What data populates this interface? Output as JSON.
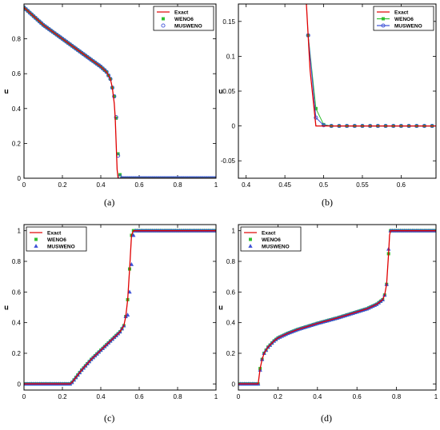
{
  "colors": {
    "exact": "#e00000",
    "weno6": "#2fbf2f",
    "musweno": "#3b4fd6",
    "axis": "#000000"
  },
  "chart_data": [
    {
      "id": "a",
      "caption": "(a)",
      "type": "line",
      "xlim": [
        0,
        1
      ],
      "ylim": [
        0,
        1
      ],
      "xticks": [
        0,
        0.2,
        0.4,
        0.6,
        0.8,
        1
      ],
      "xtick_labels": [
        "0",
        "0.2",
        "0.4",
        "0.6",
        "0.8",
        "1"
      ],
      "yticks": [
        0,
        0.2,
        0.4,
        0.6,
        0.8
      ],
      "ytick_labels": [
        "0",
        "0.2",
        "0.4",
        "0.6",
        "0.8"
      ],
      "xlabel": "",
      "ylabel": "u",
      "legend": {
        "position": "top-right",
        "entries": [
          "Exact",
          "WENO6",
          "MUSWENO"
        ]
      },
      "series": [
        {
          "name": "Exact",
          "style": "line",
          "x": [
            0,
            0.05,
            0.1,
            0.15,
            0.2,
            0.25,
            0.3,
            0.35,
            0.4,
            0.43,
            0.45,
            0.46,
            0.47,
            0.475,
            0.48,
            0.485,
            0.49,
            1
          ],
          "y": [
            0.98,
            0.93,
            0.88,
            0.84,
            0.8,
            0.76,
            0.72,
            0.68,
            0.64,
            0.61,
            0.57,
            0.52,
            0.43,
            0.35,
            0.2,
            0.05,
            0,
            0
          ]
        },
        {
          "name": "WENO6",
          "style": "square",
          "x_start": 0,
          "x_end": 1,
          "step": 0.01,
          "overrides": [
            [
              0.47,
              0.47
            ],
            [
              0.48,
              0.345
            ],
            [
              0.49,
              0.14
            ],
            [
              0.5,
              0.02
            ]
          ]
        },
        {
          "name": "MUSWENO",
          "style": "circle",
          "x_start": 0,
          "x_end": 1,
          "step": 0.01,
          "overrides": [
            [
              0.47,
              0.47
            ],
            [
              0.48,
              0.35
            ],
            [
              0.49,
              0.13
            ],
            [
              0.5,
              0.01
            ]
          ]
        }
      ]
    },
    {
      "id": "b",
      "caption": "(b)",
      "type": "line",
      "xlim": [
        0.39,
        0.645
      ],
      "ylim": [
        -0.075,
        0.175
      ],
      "xticks": [
        0.4,
        0.45,
        0.5,
        0.55,
        0.6
      ],
      "xtick_labels": [
        "0.4",
        "0.45",
        "0.5",
        "0.55",
        "0.6"
      ],
      "yticks": [
        -0.05,
        0,
        0.05,
        0.1,
        0.15
      ],
      "ytick_labels": [
        "-0.05",
        "0",
        "0.05",
        "0.1",
        "0.15"
      ],
      "xlabel": "",
      "ylabel": "u",
      "legend": {
        "position": "top-right",
        "entries": [
          "Exact",
          "WENO6",
          "MUSWENO"
        ]
      },
      "series": [
        {
          "name": "Exact",
          "style": "line",
          "x": [
            0.4775,
            0.4825,
            0.49,
            0.645
          ],
          "y": [
            0.18,
            0.08,
            0,
            0
          ]
        },
        {
          "name": "WENO6",
          "style": "square-line",
          "x": [
            0.48,
            0.49,
            0.5,
            0.51,
            0.52,
            0.53,
            0.54,
            0.55,
            0.56,
            0.57,
            0.58,
            0.59,
            0.6,
            0.61,
            0.62,
            0.63,
            0.64
          ],
          "y": [
            0.13,
            0.025,
            0.002,
            0,
            0,
            0,
            0,
            0,
            0,
            0,
            0,
            0,
            0,
            0,
            0,
            0,
            0
          ]
        },
        {
          "name": "MUSWENO",
          "style": "circle-line",
          "x": [
            0.48,
            0.49,
            0.5,
            0.51,
            0.52,
            0.53,
            0.54,
            0.55,
            0.56,
            0.57,
            0.58,
            0.59,
            0.6,
            0.61,
            0.62,
            0.63,
            0.64
          ],
          "y": [
            0.13,
            0.012,
            0.001,
            0,
            0,
            0,
            0,
            0,
            0,
            0,
            0,
            0,
            0,
            0,
            0,
            0,
            0
          ]
        }
      ]
    },
    {
      "id": "c",
      "caption": "(c)",
      "type": "line",
      "xlim": [
        0,
        1
      ],
      "ylim": [
        -0.04,
        1.04
      ],
      "xticks": [
        0,
        0.2,
        0.4,
        0.6,
        0.8,
        1
      ],
      "xtick_labels": [
        "0",
        "0.2",
        "0.4",
        "0.6",
        "0.8",
        "1"
      ],
      "yticks": [
        0,
        0.2,
        0.4,
        0.6,
        0.8,
        1
      ],
      "ytick_labels": [
        "0",
        "0.2",
        "0.4",
        "0.6",
        "0.8",
        "1"
      ],
      "xlabel": "",
      "ylabel": "u",
      "legend": {
        "position": "top-left",
        "entries": [
          "Exact",
          "WENO6",
          "MUSWENO"
        ]
      },
      "series": [
        {
          "name": "Exact",
          "style": "line",
          "x": [
            0,
            0.24,
            0.25,
            0.3,
            0.35,
            0.4,
            0.45,
            0.5,
            0.52,
            0.53,
            0.54,
            0.55,
            0.56,
            0.57,
            1
          ],
          "y": [
            0,
            0,
            0.01,
            0.09,
            0.16,
            0.22,
            0.28,
            0.34,
            0.38,
            0.44,
            0.55,
            0.75,
            0.97,
            1,
            1
          ]
        },
        {
          "name": "WENO6",
          "style": "square",
          "x_start": 0,
          "x_end": 1,
          "step": 0.01,
          "overrides": []
        },
        {
          "name": "MUSWENO",
          "style": "triangle",
          "x_start": 0,
          "x_end": 1,
          "step": 0.01,
          "overrides": [
            [
              0.54,
              0.45
            ],
            [
              0.55,
              0.6
            ],
            [
              0.56,
              0.78
            ],
            [
              0.57,
              0.97
            ]
          ]
        }
      ]
    },
    {
      "id": "d",
      "caption": "(d)",
      "type": "line",
      "xlim": [
        0,
        1
      ],
      "ylim": [
        -0.04,
        1.04
      ],
      "xticks": [
        0,
        0.2,
        0.4,
        0.6,
        0.8,
        1
      ],
      "xtick_labels": [
        "0",
        "0.2",
        "0.4",
        "0.6",
        "0.8",
        "1"
      ],
      "yticks": [
        0,
        0.2,
        0.4,
        0.6,
        0.8,
        1
      ],
      "ytick_labels": [
        "0",
        "0.2",
        "0.4",
        "0.6",
        "0.8",
        "1"
      ],
      "xlabel": "",
      "ylabel": "u",
      "legend": {
        "position": "top-left",
        "entries": [
          "Exact",
          "WENO6",
          "MUSWENO"
        ]
      },
      "series": [
        {
          "name": "Exact",
          "style": "line",
          "x": [
            0,
            0.1,
            0.105,
            0.11,
            0.12,
            0.13,
            0.15,
            0.18,
            0.2,
            0.25,
            0.3,
            0.4,
            0.5,
            0.6,
            0.65,
            0.7,
            0.73,
            0.74,
            0.75,
            0.76,
            0.765,
            0.77,
            1
          ],
          "y": [
            0,
            0,
            0.05,
            0.1,
            0.16,
            0.2,
            0.24,
            0.28,
            0.3,
            0.33,
            0.355,
            0.395,
            0.43,
            0.47,
            0.49,
            0.52,
            0.55,
            0.58,
            0.65,
            0.85,
            0.97,
            1,
            1
          ]
        },
        {
          "name": "WENO6",
          "style": "square",
          "x_start": 0,
          "x_end": 1,
          "step": 0.01,
          "overrides": []
        },
        {
          "name": "MUSWENO",
          "style": "triangle",
          "x_start": 0,
          "x_end": 1,
          "step": 0.01,
          "overrides": [
            [
              0.11,
              0.09
            ],
            [
              0.76,
              0.88
            ]
          ]
        }
      ]
    }
  ]
}
